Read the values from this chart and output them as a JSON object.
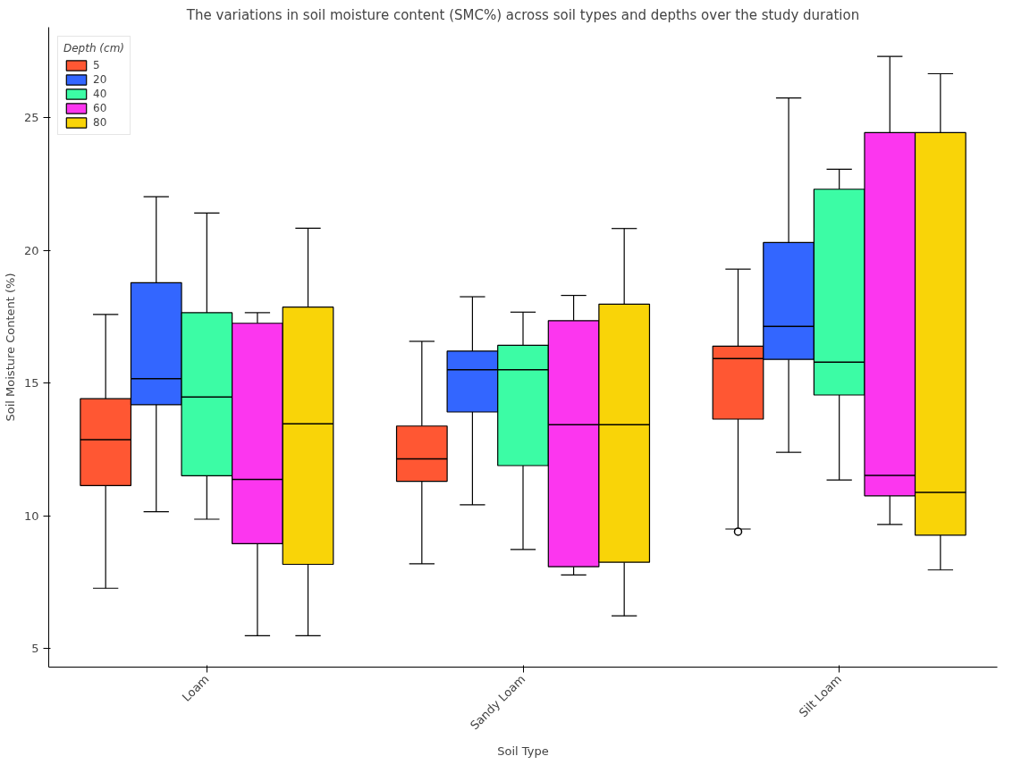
{
  "chart_data": {
    "type": "box",
    "title": "The variations in soil moisture content (SMC%) across soil types and depths over the study duration",
    "xlabel": "Soil Type",
    "ylabel": "Soil Moisture Content (%)",
    "legend_title": "Depth (cm)",
    "legend": "top left",
    "grid": false,
    "categories": [
      "Loam",
      "Sandy Loam",
      "Silt Loam"
    ],
    "ylim": [
      4.3,
      28.4
    ],
    "yticks": [
      5,
      10,
      15,
      20,
      25
    ],
    "series": [
      {
        "name": "5",
        "color": "#ff5733",
        "boxes": [
          {
            "low": 7.27,
            "q1": 11.14,
            "median": 12.87,
            "q3": 14.41,
            "high": 17.58
          },
          {
            "low": 8.19,
            "q1": 11.3,
            "median": 12.14,
            "q3": 13.38,
            "high": 16.57
          },
          {
            "low": 9.5,
            "q1": 13.64,
            "median": 15.92,
            "q3": 16.39,
            "high": 19.29,
            "outliers": [
              9.4
            ]
          }
        ]
      },
      {
        "name": "20",
        "color": "#3366ff",
        "boxes": [
          {
            "low": 10.15,
            "q1": 14.18,
            "median": 15.16,
            "q3": 18.78,
            "high": 22.02
          },
          {
            "low": 10.41,
            "q1": 13.91,
            "median": 15.5,
            "q3": 16.2,
            "high": 18.25
          },
          {
            "low": 12.39,
            "q1": 15.89,
            "median": 17.13,
            "q3": 20.29,
            "high": 25.74
          }
        ]
      },
      {
        "name": "40",
        "color": "#3cfca5",
        "boxes": [
          {
            "low": 9.87,
            "q1": 11.51,
            "median": 14.47,
            "q3": 17.65,
            "high": 21.4
          },
          {
            "low": 8.73,
            "q1": 11.89,
            "median": 15.5,
            "q3": 16.42,
            "high": 17.67
          },
          {
            "low": 11.35,
            "q1": 14.55,
            "median": 15.79,
            "q3": 22.3,
            "high": 23.05
          }
        ]
      },
      {
        "name": "60",
        "color": "#fc36ef",
        "boxes": [
          {
            "low": 5.48,
            "q1": 8.95,
            "median": 11.37,
            "q3": 17.25,
            "high": 17.65
          },
          {
            "low": 7.77,
            "q1": 8.08,
            "median": 13.43,
            "q3": 17.35,
            "high": 18.3
          },
          {
            "low": 9.67,
            "q1": 10.75,
            "median": 11.52,
            "q3": 24.43,
            "high": 27.3
          }
        ]
      },
      {
        "name": "80",
        "color": "#f9d408",
        "boxes": [
          {
            "low": 5.48,
            "q1": 8.17,
            "median": 13.46,
            "q3": 17.86,
            "high": 20.83
          },
          {
            "low": 6.23,
            "q1": 8.25,
            "median": 13.43,
            "q3": 17.97,
            "high": 20.82
          },
          {
            "low": 7.96,
            "q1": 9.27,
            "median": 10.88,
            "q3": 24.43,
            "high": 26.65
          }
        ]
      }
    ]
  }
}
